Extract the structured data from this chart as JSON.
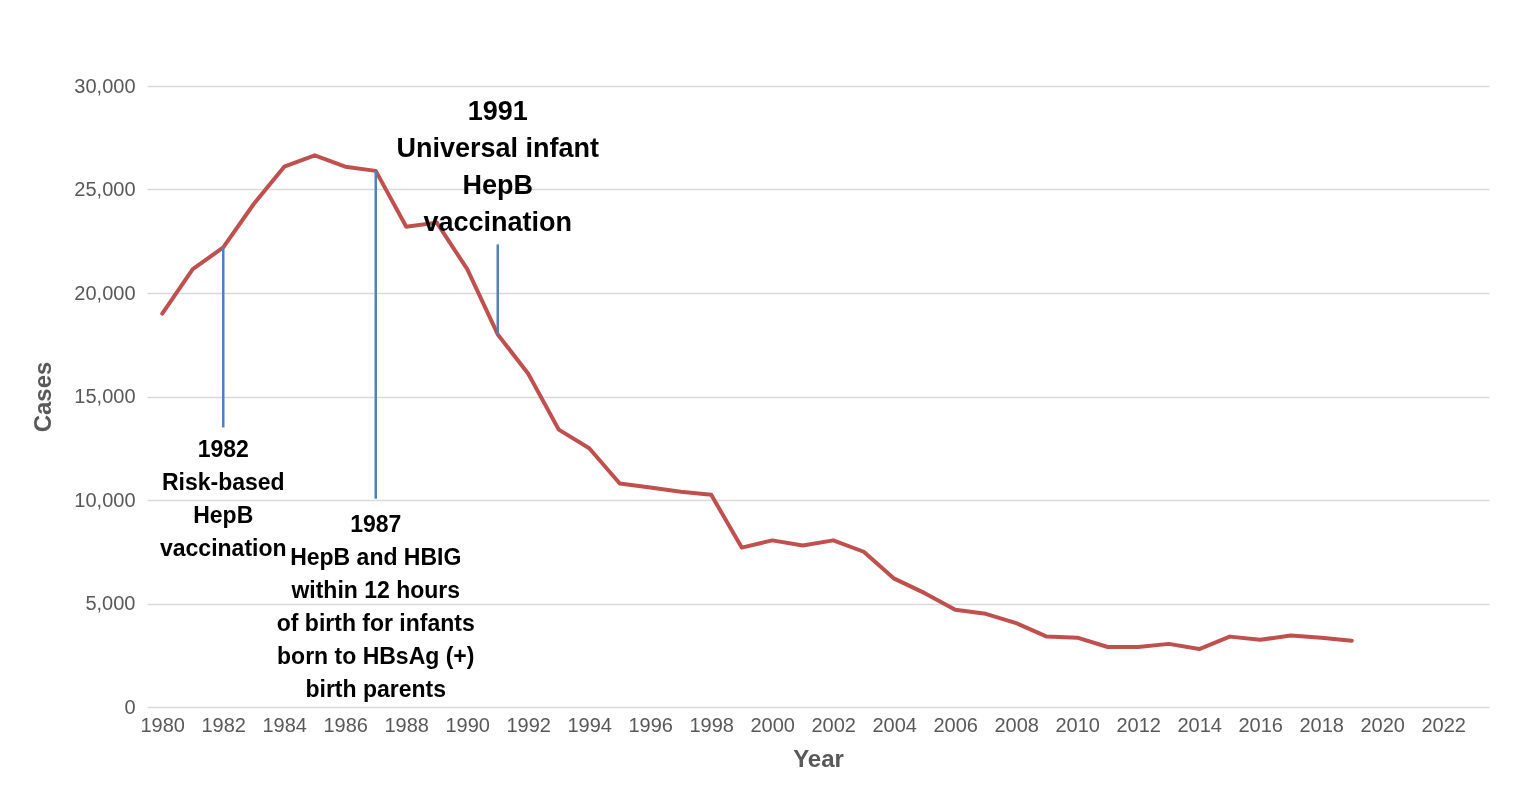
{
  "chart_data": {
    "type": "line",
    "xlabel": "Year",
    "ylabel": "Cases",
    "x": [
      1980,
      1981,
      1982,
      1983,
      1984,
      1985,
      1986,
      1987,
      1988,
      1989,
      1990,
      1991,
      1992,
      1993,
      1994,
      1995,
      1996,
      1997,
      1998,
      1999,
      2000,
      2001,
      2002,
      2003,
      2004,
      2005,
      2006,
      2007,
      2008,
      2009,
      2010,
      2011,
      2012,
      2013,
      2014,
      2015,
      2016,
      2017,
      2018,
      2019
    ],
    "series": [
      {
        "color": "#c0504d",
        "values": [
          19000,
          21150,
          22200,
          24300,
          26100,
          26650,
          26100,
          25900,
          23200,
          23400,
          21150,
          18000,
          16100,
          13400,
          12500,
          10800,
          10600,
          10400,
          10250,
          7700,
          8050,
          7800,
          8050,
          7500,
          6200,
          5500,
          4700,
          4500,
          4050,
          3400,
          3350,
          2900,
          2900,
          3050,
          2800,
          3400,
          3250,
          3450,
          3350,
          3200
        ]
      }
    ],
    "xlim": [
      1979.5,
      2023.5
    ],
    "xticks": [
      1980,
      1982,
      1984,
      1986,
      1988,
      1990,
      1992,
      1994,
      1996,
      1998,
      2000,
      2002,
      2004,
      2006,
      2008,
      2010,
      2012,
      2014,
      2016,
      2018,
      2020,
      2022
    ],
    "ylim": [
      0,
      30000
    ],
    "yticks": [
      0,
      {
        "value": 5000,
        "label": "5,000"
      },
      {
        "value": 10000,
        "label": "10,000"
      },
      {
        "value": 15000,
        "label": "15,000"
      },
      {
        "value": 20000,
        "label": "20,000"
      },
      {
        "value": 25000,
        "label": "25,000"
      },
      {
        "value": 30000,
        "label": "30,000"
      }
    ],
    "grid": "y",
    "legend": false,
    "marker": "none",
    "line_style": "solid",
    "annotations": [
      {
        "text": "1982\nRisk-based\nHepB\nvaccination",
        "x": 1982,
        "y": 22200
      },
      {
        "text": "1987\nHepB and HBIG\nwithin 12 hours\nof birth for infants\nborn to HBsAg (+)\nbirth parents",
        "x": 1987,
        "y": 25900
      },
      {
        "text": "1991\nUniversal infant\nHepB\nvaccination",
        "x": 1991,
        "y": 18000
      }
    ]
  }
}
